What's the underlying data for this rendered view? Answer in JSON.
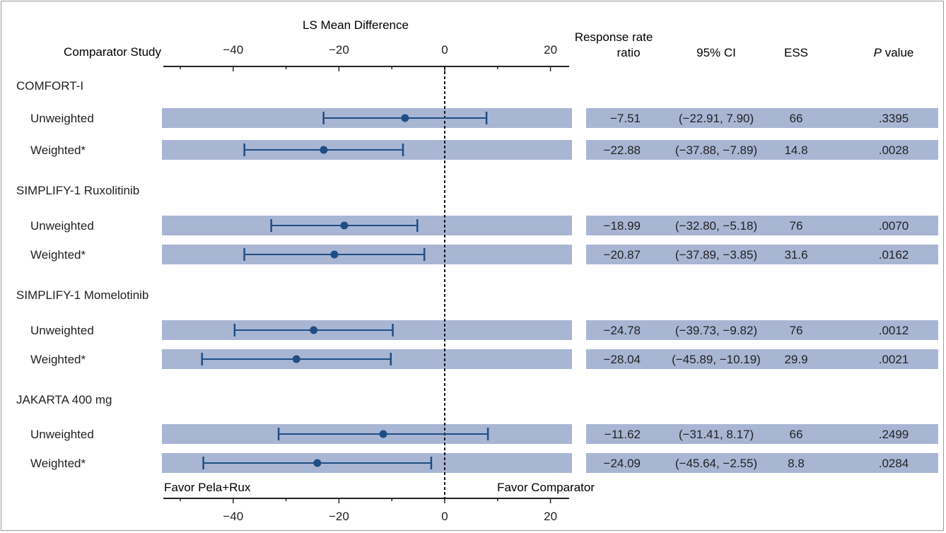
{
  "header": {
    "comparator_study": "Comparator Study",
    "axis_title": "LS Mean Difference",
    "col_ratio_line1": "Response rate",
    "col_ratio_line2": "ratio",
    "col_ci": "95% CI",
    "col_ess": "ESS",
    "col_p_italic": "P",
    "col_p_rest": " value"
  },
  "footer": {
    "favor_left": "Favor Pela+Rux",
    "favor_right": "Favor Comparator"
  },
  "colors": {
    "band": "#a8b6d4",
    "marker": "#1f4e85",
    "axis": "#222222"
  },
  "chart_data": {
    "type": "forest",
    "xlabel": "LS Mean Difference",
    "xlim": [
      -53,
      24
    ],
    "xticks": [
      -40,
      -20,
      0,
      20
    ],
    "xtick_labels": [
      "−40",
      "−20",
      "0",
      "20"
    ],
    "reference_line": 0,
    "groups": [
      {
        "study": "COMFORT-I",
        "rows": [
          {
            "label": "Unweighted",
            "estimate": -7.51,
            "ci_low": -22.91,
            "ci_high": 7.9,
            "estimate_text": "−7.51",
            "ci_text": "(−22.91, 7.90)",
            "ess": "66",
            "p": ".3395"
          },
          {
            "label": "Weighted*",
            "estimate": -22.88,
            "ci_low": -37.88,
            "ci_high": -7.89,
            "estimate_text": "−22.88",
            "ci_text": "(−37.88, −7.89)",
            "ess": "14.8",
            "p": ".0028"
          }
        ]
      },
      {
        "study": "SIMPLIFY-1 Ruxolitinib",
        "rows": [
          {
            "label": "Unweighted",
            "estimate": -18.99,
            "ci_low": -32.8,
            "ci_high": -5.18,
            "estimate_text": "−18.99",
            "ci_text": "(−32.80, −5.18)",
            "ess": "76",
            "p": ".0070"
          },
          {
            "label": "Weighted*",
            "estimate": -20.87,
            "ci_low": -37.89,
            "ci_high": -3.85,
            "estimate_text": "−20.87",
            "ci_text": "(−37.89, −3.85)",
            "ess": "31.6",
            "p": ".0162"
          }
        ]
      },
      {
        "study": "SIMPLIFY-1 Momelotinib",
        "rows": [
          {
            "label": "Unweighted",
            "estimate": -24.78,
            "ci_low": -39.73,
            "ci_high": -9.82,
            "estimate_text": "−24.78",
            "ci_text": "(−39.73, −9.82)",
            "ess": "76",
            "p": ".0012"
          },
          {
            "label": "Weighted*",
            "estimate": -28.04,
            "ci_low": -45.89,
            "ci_high": -10.19,
            "estimate_text": "−28.04",
            "ci_text": "(−45.89, −10.19)",
            "ess": "29.9",
            "p": ".0021"
          }
        ]
      },
      {
        "study": "JAKARTA 400 mg",
        "rows": [
          {
            "label": "Unweighted",
            "estimate": -11.62,
            "ci_low": -31.41,
            "ci_high": 8.17,
            "estimate_text": "−11.62",
            "ci_text": "(−31.41, 8.17)",
            "ess": "66",
            "p": ".2499"
          },
          {
            "label": "Weighted*",
            "estimate": -24.09,
            "ci_low": -45.64,
            "ci_high": -2.55,
            "estimate_text": "−24.09",
            "ci_text": "(−45.64, −2.55)",
            "ess": "8.8",
            "p": ".0284"
          }
        ]
      }
    ]
  }
}
